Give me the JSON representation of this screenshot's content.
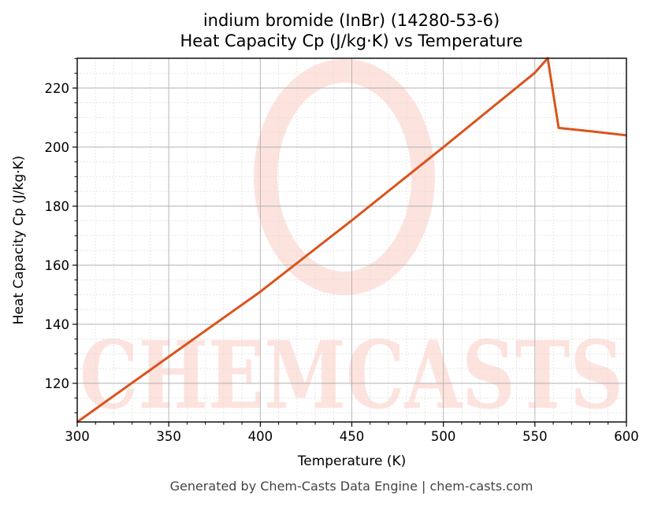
{
  "title_line1": "indium bromide (InBr) (14280-53-6)",
  "title_line2": "Heat Capacity Cp (J/kg·K) vs Temperature",
  "footer": "Generated by Chem-Casts Data Engine | chem-casts.com",
  "watermark": "CHEMCASTS",
  "colors": {
    "line": "#D9541E",
    "watermark": "#FDE3DE",
    "grid_major": "#b0b0b0",
    "grid_minor": "#dddddd"
  },
  "chart_data": {
    "type": "line",
    "title": "indium bromide (InBr) (14280-53-6)\nHeat Capacity Cp (J/kg·K) vs Temperature",
    "xlabel": "Temperature (K)",
    "ylabel": "Heat Capacity Cp (J/kg·K)",
    "xlim": [
      300,
      600
    ],
    "ylim": [
      106.9,
      230.1
    ],
    "xticks": [
      300,
      350,
      400,
      450,
      500,
      550,
      600
    ],
    "yticks": [
      120,
      140,
      160,
      180,
      200,
      220
    ],
    "grid": true,
    "legend": null,
    "series": [
      {
        "name": "Cp",
        "x": [
          300,
          350,
          400,
          450,
          500,
          550,
          557,
          563,
          580,
          600
        ],
        "y": [
          106.9,
          129.0,
          151.0,
          175.2,
          200.0,
          225.2,
          230.1,
          206.5,
          205.4,
          204.0
        ]
      }
    ]
  }
}
